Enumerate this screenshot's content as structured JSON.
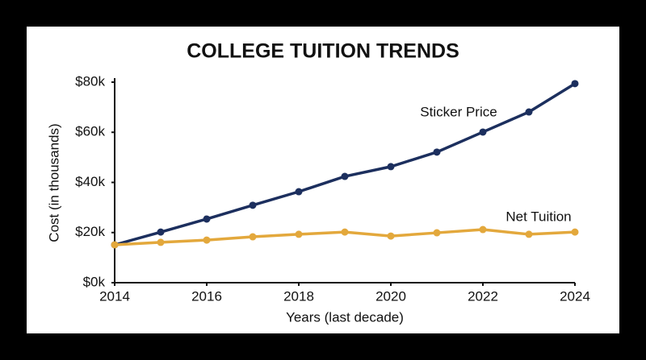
{
  "chart_data": {
    "type": "line",
    "title": "COLLEGE TUITION TRENDS",
    "x_label": "Years (last decade)",
    "y_label": "Cost (in thousands)",
    "x": [
      2014,
      2015,
      2016,
      2017,
      2018,
      2019,
      2020,
      2021,
      2022,
      2023,
      2024
    ],
    "series": [
      {
        "name": "Sticker Price",
        "color": "#1c2f5e",
        "values": [
          15.1,
          20.2,
          25.4,
          30.9,
          36.3,
          42.4,
          46.3,
          52.1,
          60.1,
          68.1,
          79.4
        ]
      },
      {
        "name": "Net Tuition",
        "color": "#e3a83c",
        "values": [
          15.1,
          16.1,
          17.0,
          18.3,
          19.3,
          20.2,
          18.6,
          19.9,
          21.2,
          19.3,
          20.2
        ]
      }
    ],
    "xlim": [
      2014,
      2024
    ],
    "xticks": [
      2014,
      2016,
      2018,
      2020,
      2022,
      2024
    ],
    "ylim": [
      0,
      80
    ],
    "yticks": [
      {
        "value": 0,
        "label": "$0k"
      },
      {
        "value": 20,
        "label": "$20k"
      },
      {
        "value": 40,
        "label": "$40k"
      },
      {
        "value": 60,
        "label": "$60k"
      },
      {
        "value": 80,
        "label": "$80k"
      }
    ]
  }
}
